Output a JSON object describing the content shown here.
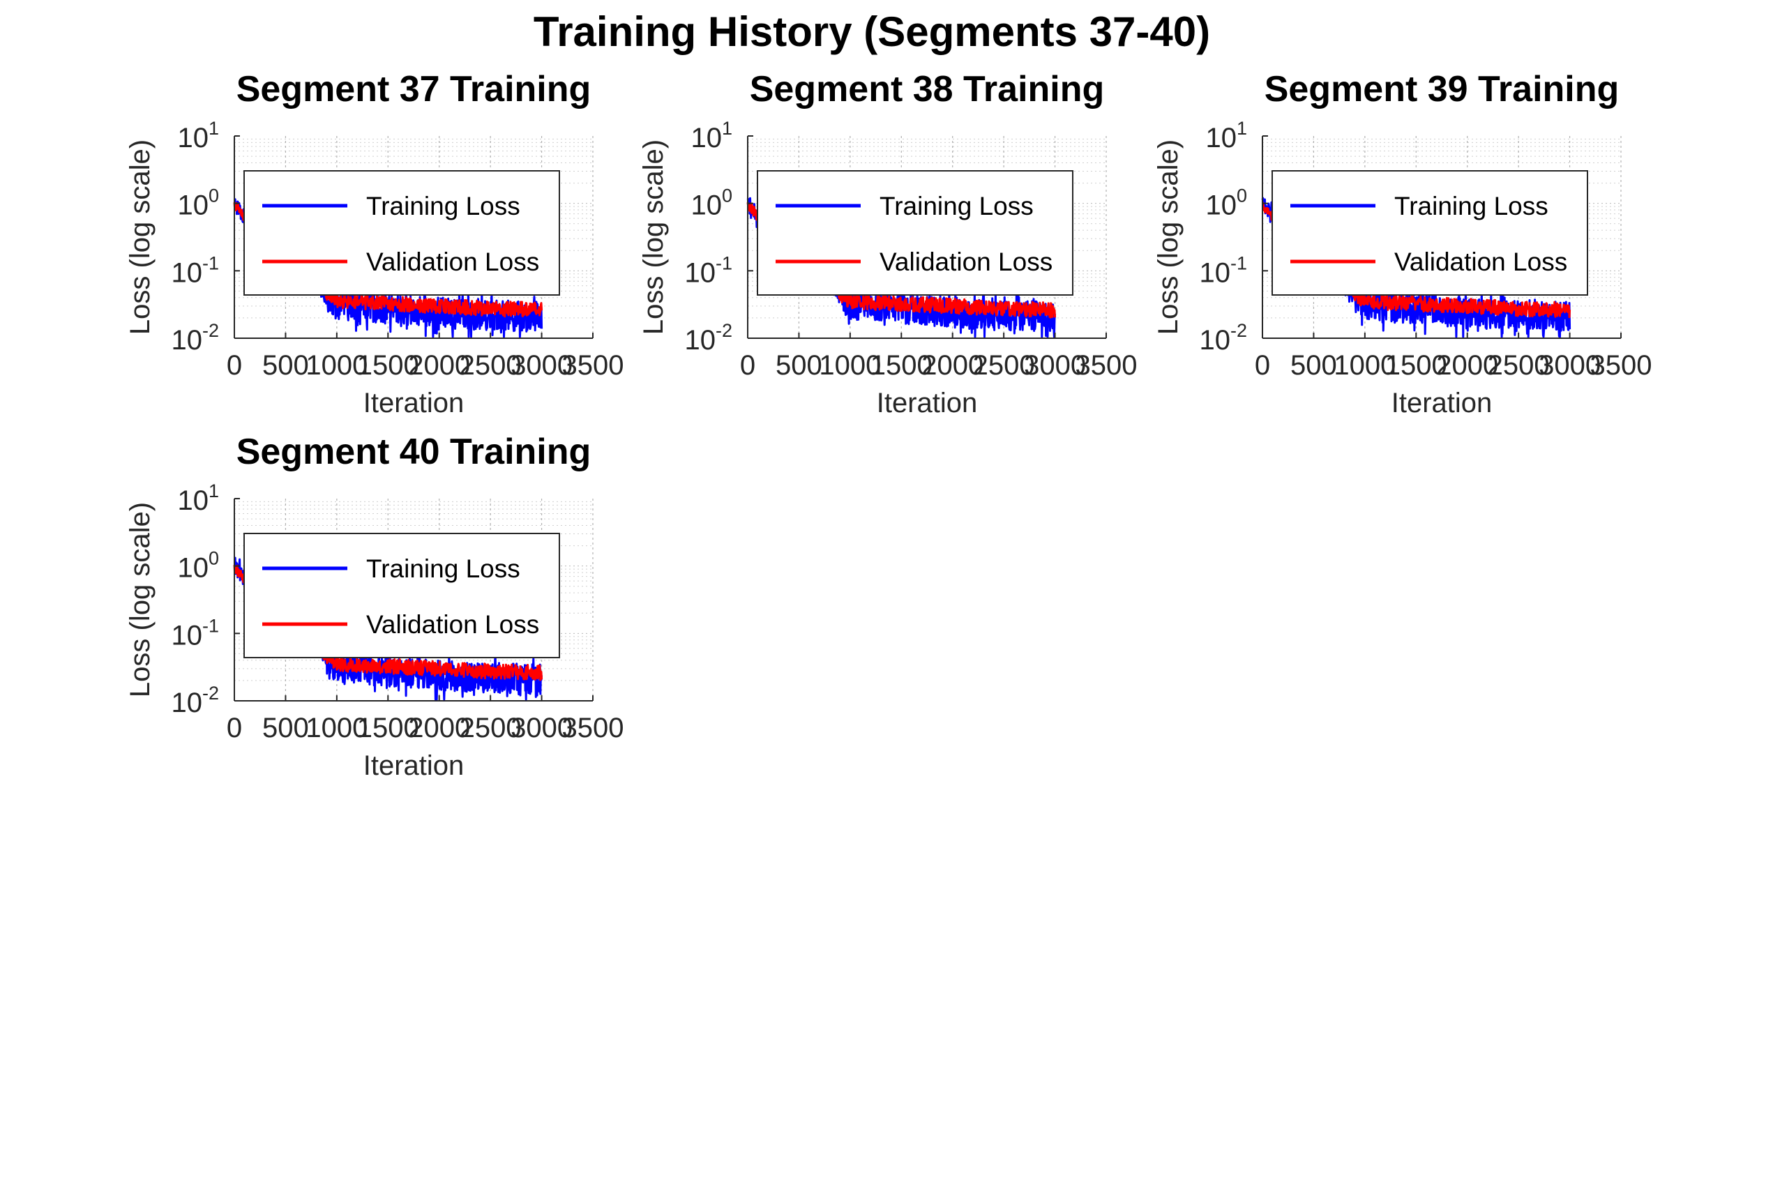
{
  "figure": {
    "title": "Training History (Segments 37-40)"
  },
  "colors": {
    "training": "#0000ff",
    "validation": "#ff0000",
    "axis": "#262626",
    "grid": "#b0b0b0"
  },
  "chart_data": [
    {
      "type": "line",
      "title": "Segment 37 Training",
      "xlabel": "Iteration",
      "ylabel": "Loss (log scale)",
      "yscale": "log",
      "xlim": [
        0,
        3500
      ],
      "ylim": [
        0.01,
        10
      ],
      "xticks": [
        "0",
        "500",
        "1000",
        "1500",
        "2000",
        "2500",
        "3000",
        "3500"
      ],
      "yticks": [
        {
          "base": "10",
          "exp": "-2",
          "value": 0.01
        },
        {
          "base": "10",
          "exp": "-1",
          "value": 0.1
        },
        {
          "base": "10",
          "exp": "0",
          "value": 1
        },
        {
          "base": "10",
          "exp": "1",
          "value": 10
        }
      ],
      "grid": true,
      "legend": "top-left",
      "series": [
        {
          "name": "Training Loss",
          "color": "#0000ff",
          "x": [
            0,
            50,
            100,
            200,
            400,
            600,
            800,
            900,
            1000,
            1200,
            1400,
            1600,
            1800,
            2000,
            2200,
            2400,
            2600,
            2800,
            3000
          ],
          "y": [
            1.0,
            0.8,
            0.6,
            0.4,
            0.22,
            0.12,
            0.06,
            0.04,
            0.032,
            0.03,
            0.028,
            0.027,
            0.025,
            0.024,
            0.023,
            0.022,
            0.022,
            0.021,
            0.021
          ]
        },
        {
          "name": "Validation Loss",
          "color": "#ff0000",
          "x": [
            0,
            50,
            100,
            200,
            400,
            600,
            800,
            900,
            1000,
            1200,
            1400,
            1600,
            1800,
            2000,
            2200,
            2400,
            2600,
            2800,
            3000
          ],
          "y": [
            0.95,
            0.8,
            0.62,
            0.42,
            0.24,
            0.13,
            0.065,
            0.045,
            0.036,
            0.034,
            0.033,
            0.032,
            0.031,
            0.03,
            0.029,
            0.028,
            0.027,
            0.027,
            0.026
          ]
        }
      ]
    },
    {
      "type": "line",
      "title": "Segment 38 Training",
      "xlabel": "Iteration",
      "ylabel": "Loss (log scale)",
      "yscale": "log",
      "xlim": [
        0,
        3500
      ],
      "ylim": [
        0.01,
        10
      ],
      "xticks": [
        "0",
        "500",
        "1000",
        "1500",
        "2000",
        "2500",
        "3000",
        "3500"
      ],
      "yticks": [
        {
          "base": "10",
          "exp": "-2",
          "value": 0.01
        },
        {
          "base": "10",
          "exp": "-1",
          "value": 0.1
        },
        {
          "base": "10",
          "exp": "0",
          "value": 1
        },
        {
          "base": "10",
          "exp": "1",
          "value": 10
        }
      ],
      "grid": true,
      "legend": "top-left",
      "series": [
        {
          "name": "Training Loss",
          "color": "#0000ff",
          "x": [
            0,
            50,
            100,
            200,
            400,
            600,
            800,
            900,
            1000,
            1200,
            1400,
            1600,
            1800,
            2000,
            2200,
            2400,
            2600,
            2800,
            3000
          ],
          "y": [
            1.0,
            0.8,
            0.6,
            0.4,
            0.22,
            0.12,
            0.06,
            0.04,
            0.032,
            0.03,
            0.028,
            0.027,
            0.025,
            0.024,
            0.023,
            0.022,
            0.022,
            0.021,
            0.021
          ]
        },
        {
          "name": "Validation Loss",
          "color": "#ff0000",
          "x": [
            0,
            50,
            100,
            200,
            400,
            600,
            800,
            900,
            1000,
            1200,
            1400,
            1600,
            1800,
            2000,
            2200,
            2400,
            2600,
            2800,
            3000
          ],
          "y": [
            0.95,
            0.8,
            0.62,
            0.42,
            0.24,
            0.13,
            0.065,
            0.045,
            0.036,
            0.034,
            0.033,
            0.032,
            0.031,
            0.03,
            0.029,
            0.028,
            0.027,
            0.027,
            0.026
          ]
        }
      ]
    },
    {
      "type": "line",
      "title": "Segment 39 Training",
      "xlabel": "Iteration",
      "ylabel": "Loss (log scale)",
      "yscale": "log",
      "xlim": [
        0,
        3500
      ],
      "ylim": [
        0.01,
        10
      ],
      "xticks": [
        "0",
        "500",
        "1000",
        "1500",
        "2000",
        "2500",
        "3000",
        "3500"
      ],
      "yticks": [
        {
          "base": "10",
          "exp": "-2",
          "value": 0.01
        },
        {
          "base": "10",
          "exp": "-1",
          "value": 0.1
        },
        {
          "base": "10",
          "exp": "0",
          "value": 1
        },
        {
          "base": "10",
          "exp": "1",
          "value": 10
        }
      ],
      "grid": true,
      "legend": "top-left",
      "series": [
        {
          "name": "Training Loss",
          "color": "#0000ff",
          "x": [
            0,
            50,
            100,
            200,
            400,
            600,
            800,
            900,
            1000,
            1200,
            1400,
            1600,
            1800,
            2000,
            2200,
            2400,
            2600,
            2800,
            3000
          ],
          "y": [
            1.0,
            0.8,
            0.6,
            0.4,
            0.22,
            0.12,
            0.06,
            0.04,
            0.032,
            0.03,
            0.028,
            0.027,
            0.025,
            0.024,
            0.023,
            0.022,
            0.022,
            0.021,
            0.021
          ]
        },
        {
          "name": "Validation Loss",
          "color": "#ff0000",
          "x": [
            0,
            50,
            100,
            200,
            400,
            600,
            800,
            900,
            1000,
            1200,
            1400,
            1600,
            1800,
            2000,
            2200,
            2400,
            2600,
            2800,
            3000
          ],
          "y": [
            0.95,
            0.8,
            0.62,
            0.42,
            0.24,
            0.13,
            0.065,
            0.045,
            0.036,
            0.034,
            0.033,
            0.032,
            0.031,
            0.03,
            0.029,
            0.028,
            0.027,
            0.027,
            0.026
          ]
        }
      ]
    },
    {
      "type": "line",
      "title": "Segment 40 Training",
      "xlabel": "Iteration",
      "ylabel": "Loss (log scale)",
      "yscale": "log",
      "xlim": [
        0,
        3500
      ],
      "ylim": [
        0.01,
        10
      ],
      "xticks": [
        "0",
        "500",
        "1000",
        "1500",
        "2000",
        "2500",
        "3000",
        "3500"
      ],
      "yticks": [
        {
          "base": "10",
          "exp": "-2",
          "value": 0.01
        },
        {
          "base": "10",
          "exp": "-1",
          "value": 0.1
        },
        {
          "base": "10",
          "exp": "0",
          "value": 1
        },
        {
          "base": "10",
          "exp": "1",
          "value": 10
        }
      ],
      "grid": true,
      "legend": "top-left",
      "series": [
        {
          "name": "Training Loss",
          "color": "#0000ff",
          "x": [
            0,
            50,
            100,
            200,
            400,
            600,
            800,
            900,
            1000,
            1200,
            1400,
            1600,
            1800,
            2000,
            2200,
            2400,
            2600,
            2800,
            3000
          ],
          "y": [
            1.0,
            0.8,
            0.6,
            0.4,
            0.22,
            0.12,
            0.06,
            0.04,
            0.032,
            0.03,
            0.028,
            0.027,
            0.025,
            0.024,
            0.023,
            0.022,
            0.022,
            0.021,
            0.021
          ]
        },
        {
          "name": "Validation Loss",
          "color": "#ff0000",
          "x": [
            0,
            50,
            100,
            200,
            400,
            600,
            800,
            900,
            1000,
            1200,
            1400,
            1600,
            1800,
            2000,
            2200,
            2400,
            2600,
            2800,
            3000
          ],
          "y": [
            0.95,
            0.8,
            0.62,
            0.42,
            0.24,
            0.13,
            0.065,
            0.045,
            0.036,
            0.034,
            0.033,
            0.032,
            0.031,
            0.03,
            0.029,
            0.028,
            0.027,
            0.027,
            0.026
          ]
        }
      ]
    }
  ]
}
